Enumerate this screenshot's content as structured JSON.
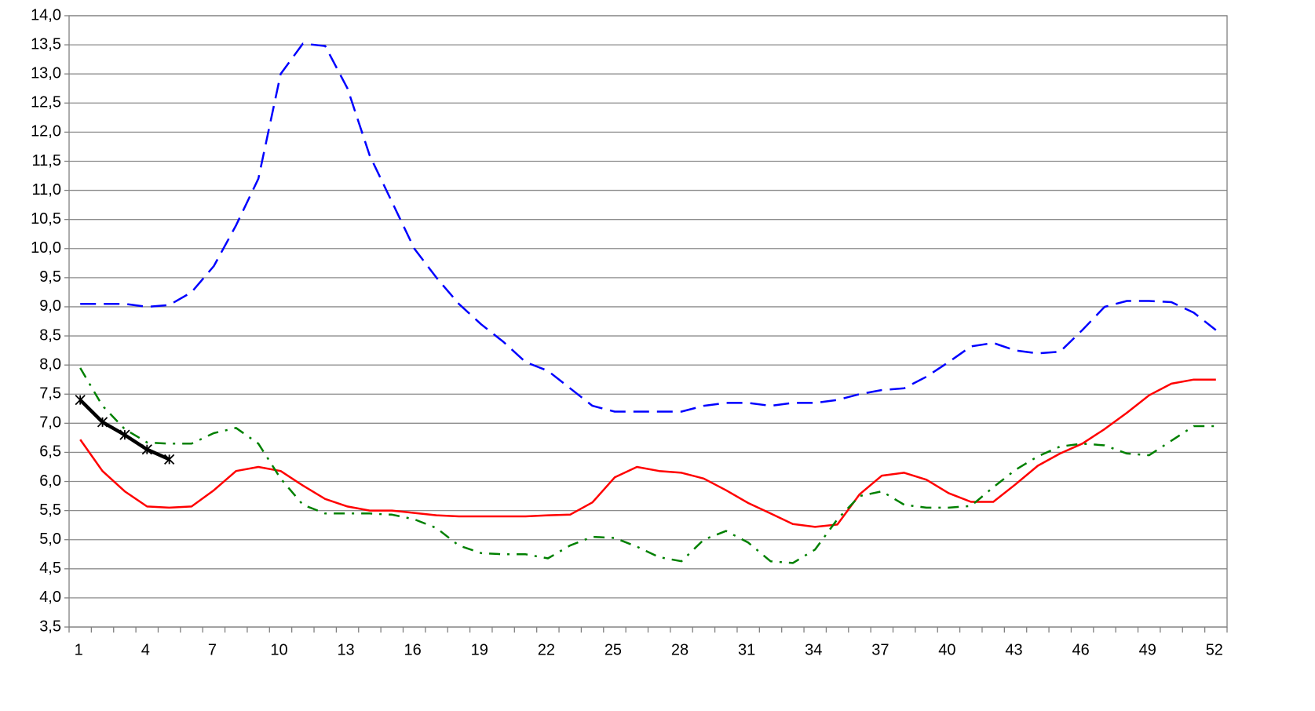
{
  "chart_data": {
    "type": "line",
    "categories": [
      1,
      null,
      null,
      4,
      null,
      null,
      7,
      null,
      null,
      10,
      null,
      null,
      13,
      null,
      null,
      16,
      null,
      null,
      19,
      null,
      null,
      22,
      null,
      null,
      25,
      null,
      null,
      28,
      null,
      null,
      31,
      null,
      null,
      34,
      null,
      null,
      37,
      null,
      null,
      40,
      null,
      null,
      43,
      null,
      null,
      46,
      null,
      null,
      49,
      null,
      null,
      52
    ],
    "ylim": [
      3.5,
      14
    ],
    "yticks": [
      {
        "value": 3.5,
        "label": "3,5"
      },
      {
        "value": 4,
        "label": "4,0"
      },
      {
        "value": 4.5,
        "label": "4,5"
      },
      {
        "value": 5,
        "label": "5,0"
      },
      {
        "value": 5.5,
        "label": "5,5"
      },
      {
        "value": 6,
        "label": "6,0"
      },
      {
        "value": 6.5,
        "label": "6,5"
      },
      {
        "value": 7,
        "label": "7,0"
      },
      {
        "value": 7.5,
        "label": "7,5"
      },
      {
        "value": 8,
        "label": "8,0"
      },
      {
        "value": 8.5,
        "label": "8,5"
      },
      {
        "value": 9,
        "label": "9,0"
      },
      {
        "value": 9.5,
        "label": "9,5"
      },
      {
        "value": 10,
        "label": "10,0"
      },
      {
        "value": 10.5,
        "label": "10,5"
      },
      {
        "value": 11,
        "label": "11,0"
      },
      {
        "value": 11.5,
        "label": "11,5"
      },
      {
        "value": 12,
        "label": "12,0"
      },
      {
        "value": 12.5,
        "label": "12,5"
      },
      {
        "value": 13,
        "label": "13,0"
      },
      {
        "value": 13.5,
        "label": "13,5"
      },
      {
        "value": 14,
        "label": "14,0"
      }
    ],
    "grid": true,
    "series": [
      {
        "color": "#0000ff",
        "dash": "dashed",
        "values": [
          9.05,
          9.05,
          9.05,
          9.0,
          9.03,
          9.25,
          9.7,
          10.4,
          11.2,
          13.0,
          13.52,
          13.48,
          12.75,
          11.6,
          10.8,
          10.0,
          9.5,
          9.05,
          8.7,
          8.4,
          8.05,
          7.9,
          7.6,
          7.3,
          7.2,
          7.2,
          7.2,
          7.2,
          7.3,
          7.35,
          7.35,
          7.3,
          7.35,
          7.35,
          7.4,
          7.5,
          7.57,
          7.6,
          7.8,
          8.05,
          8.32,
          8.38,
          8.25,
          8.2,
          8.23,
          8.6,
          9.0,
          9.1,
          9.1,
          9.08,
          8.9,
          8.6
        ]
      },
      {
        "color": "#ff0000",
        "dash": "solid",
        "values": [
          6.72,
          6.18,
          5.83,
          5.57,
          5.55,
          5.57,
          5.85,
          6.18,
          6.25,
          6.18,
          5.93,
          5.7,
          5.57,
          5.5,
          5.5,
          5.46,
          5.42,
          5.4,
          5.4,
          5.4,
          5.4,
          5.42,
          5.43,
          5.64,
          6.07,
          6.25,
          6.18,
          6.15,
          6.05,
          5.85,
          5.63,
          5.45,
          5.27,
          5.22,
          5.26,
          5.78,
          6.1,
          6.15,
          6.03,
          5.8,
          5.65,
          5.65,
          5.95,
          6.27,
          6.48,
          6.65,
          6.9,
          7.18,
          7.48,
          7.68,
          7.75,
          7.75
        ]
      },
      {
        "color": "#008000",
        "dash": "dashdot",
        "values": [
          7.95,
          7.3,
          6.9,
          6.67,
          6.65,
          6.65,
          6.83,
          6.92,
          6.65,
          6.05,
          5.6,
          5.45,
          5.45,
          5.45,
          5.43,
          5.35,
          5.2,
          4.9,
          4.77,
          4.75,
          4.75,
          4.68,
          4.9,
          5.05,
          5.03,
          4.88,
          4.7,
          4.63,
          5.0,
          5.15,
          4.95,
          4.63,
          4.6,
          4.83,
          5.35,
          5.75,
          5.83,
          5.6,
          5.55,
          5.55,
          5.58,
          5.9,
          6.2,
          6.43,
          6.6,
          6.65,
          6.62,
          6.48,
          6.45,
          6.7,
          6.95,
          6.95
        ]
      },
      {
        "color": "#000000",
        "dash": "solid",
        "marker": "star",
        "values": [
          7.4,
          7.02,
          6.8,
          6.55,
          6.38,
          null,
          null,
          null,
          null,
          null,
          null,
          null,
          null,
          null,
          null,
          null,
          null,
          null,
          null,
          null,
          null,
          null,
          null,
          null,
          null,
          null,
          null,
          null,
          null,
          null,
          null,
          null,
          null,
          null,
          null,
          null,
          null,
          null,
          null,
          null,
          null,
          null,
          null,
          null,
          null,
          null,
          null,
          null,
          null,
          null,
          null,
          null
        ]
      }
    ]
  }
}
